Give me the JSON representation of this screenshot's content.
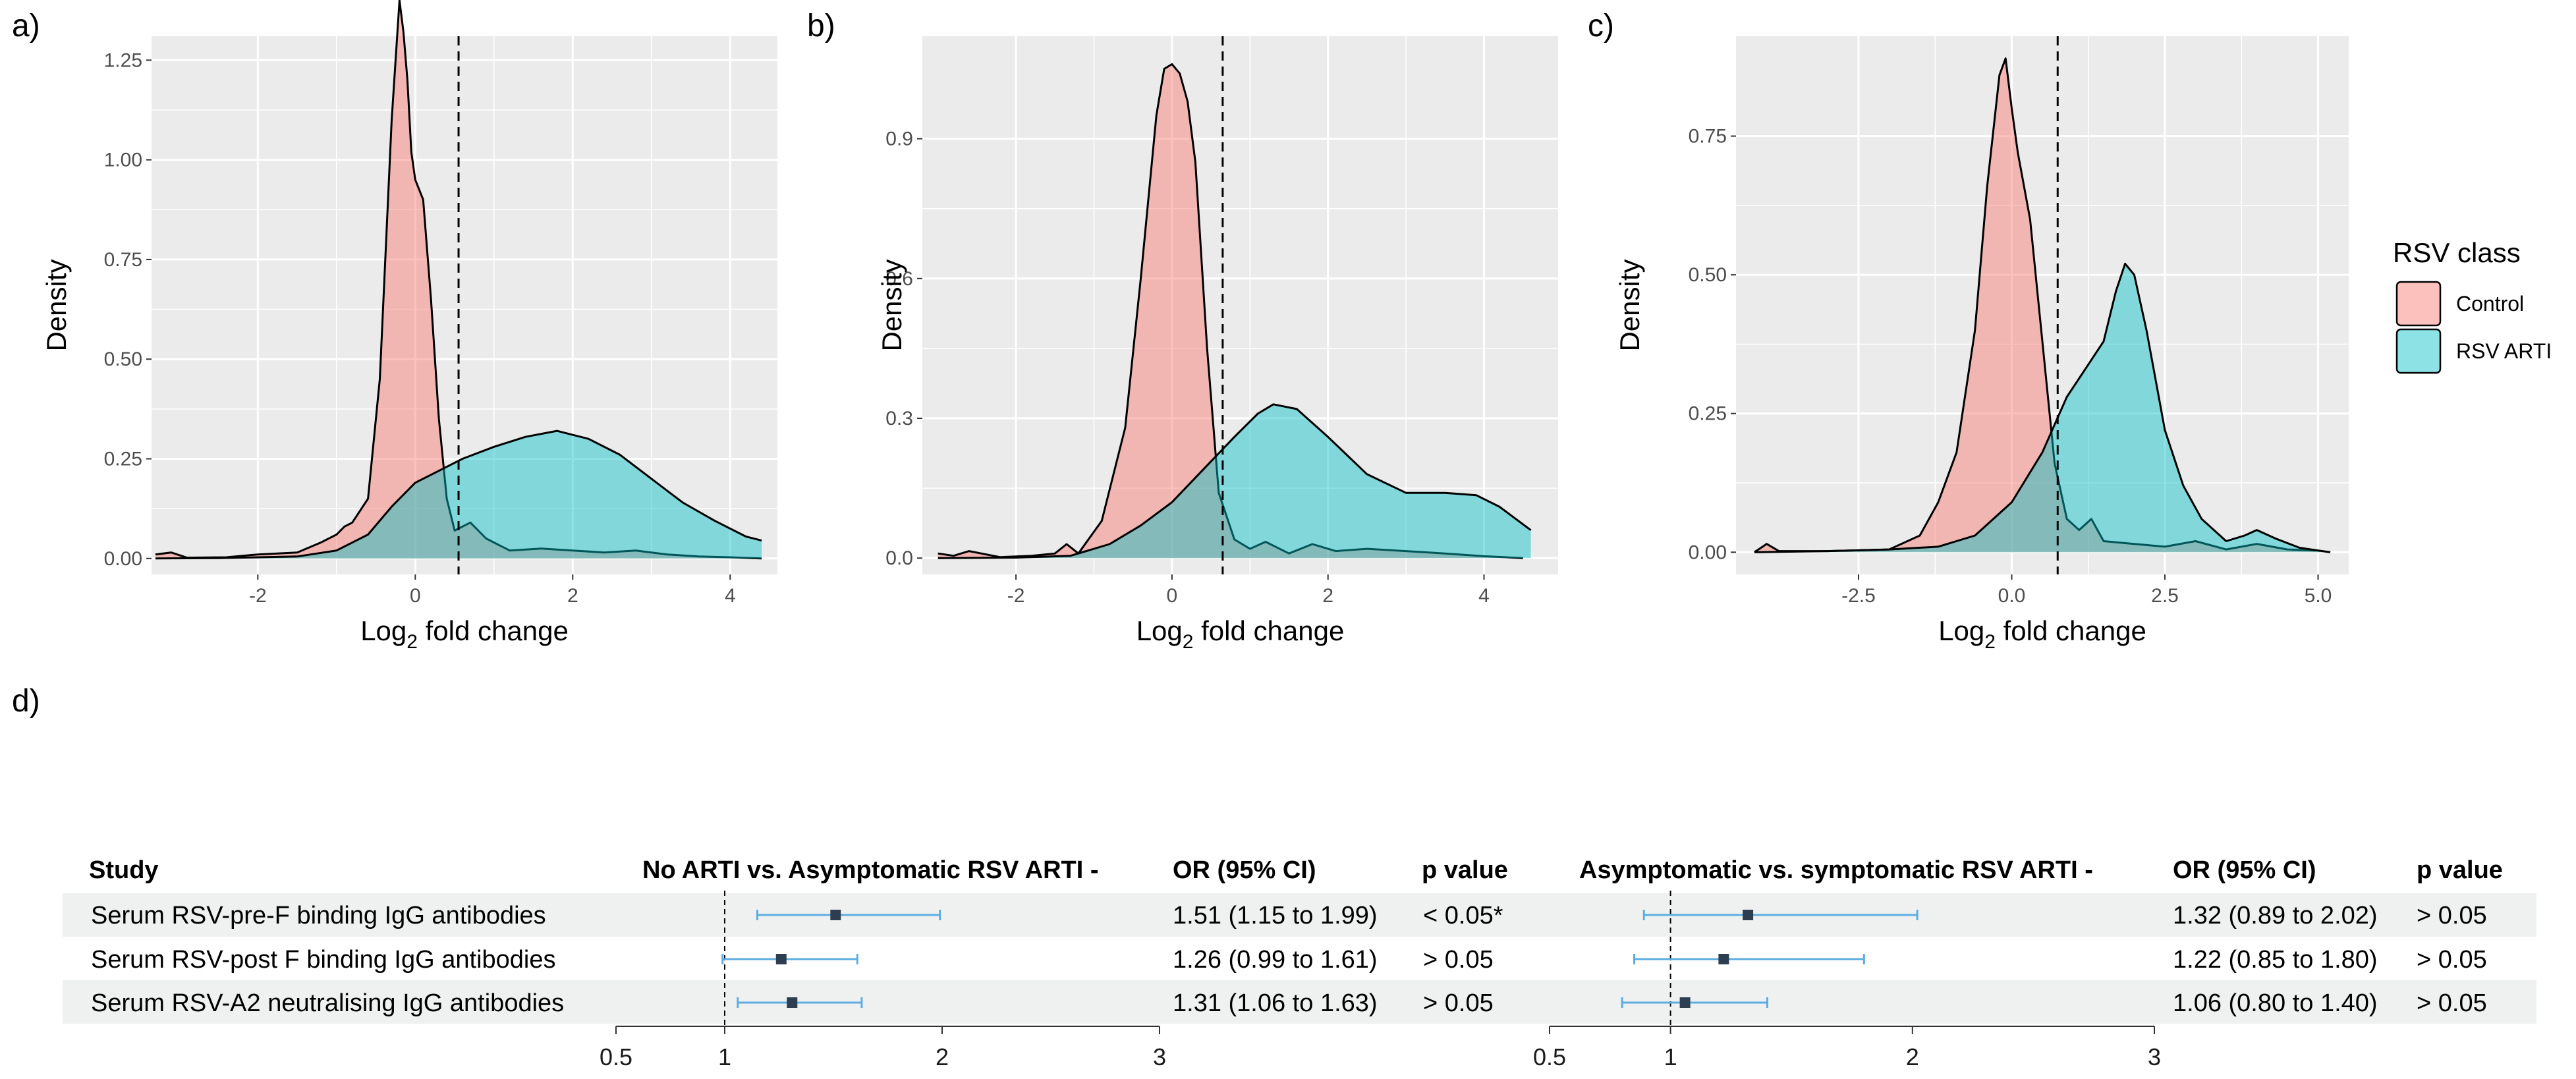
{
  "colors": {
    "control_fill": "#F8766D",
    "rsv_fill": "#00BFC4",
    "panel_bg": "#EBEBEB",
    "grid": "#FFFFFF",
    "forest_ci": "#5DADE2",
    "forest_point": "#2C3E50",
    "row_shade": "#EEF1F0"
  },
  "chart_data": [
    {
      "type": "area",
      "panel_label": "a)",
      "title": "",
      "xlabel_base": "Log",
      "xlabel_sub": "2",
      "xlabel_rest": " fold change",
      "ylabel": "Density",
      "xlim": [
        -3.35,
        4.6
      ],
      "ylim": [
        -0.04,
        1.31
      ],
      "xticks": [
        -2,
        0,
        2,
        4
      ],
      "xtick_labels": [
        "-2",
        "0",
        "2",
        "4"
      ],
      "yticks": [
        0,
        0.25,
        0.5,
        0.75,
        1.0,
        1.25
      ],
      "ytick_labels": [
        "0.00",
        "0.25",
        "0.50",
        "0.75",
        "1.00",
        "1.25"
      ],
      "threshold": 0.55,
      "series": [
        {
          "name": "Control",
          "x": [
            -3.3,
            -3.1,
            -2.9,
            -2.4,
            -2.0,
            -1.5,
            -1.2,
            -1.0,
            -0.9,
            -0.8,
            -0.6,
            -0.45,
            -0.3,
            -0.2,
            -0.15,
            -0.1,
            -0.05,
            0.0,
            0.1,
            0.2,
            0.3,
            0.4,
            0.5,
            0.7,
            0.9,
            1.2,
            1.6,
            2.0,
            2.4,
            2.8,
            3.2,
            3.6,
            4.0,
            4.4
          ],
          "y": [
            0.01,
            0.015,
            0.002,
            0.003,
            0.01,
            0.015,
            0.04,
            0.06,
            0.08,
            0.09,
            0.15,
            0.45,
            1.1,
            1.4,
            1.32,
            1.2,
            1.02,
            0.95,
            0.9,
            0.65,
            0.35,
            0.15,
            0.07,
            0.09,
            0.05,
            0.02,
            0.025,
            0.02,
            0.015,
            0.02,
            0.01,
            0.005,
            0.003,
            0.0
          ]
        },
        {
          "name": "RSV ARTI",
          "x": [
            -3.3,
            -2.5,
            -1.5,
            -1.0,
            -0.6,
            -0.3,
            0.0,
            0.3,
            0.6,
            1.0,
            1.4,
            1.8,
            2.2,
            2.6,
            3.0,
            3.4,
            3.8,
            4.2,
            4.4
          ],
          "y": [
            0.0,
            0.001,
            0.005,
            0.02,
            0.06,
            0.13,
            0.19,
            0.22,
            0.25,
            0.28,
            0.305,
            0.32,
            0.3,
            0.26,
            0.2,
            0.14,
            0.095,
            0.055,
            0.045
          ]
        }
      ]
    },
    {
      "type": "area",
      "panel_label": "b)",
      "title": "",
      "xlabel_base": "Log",
      "xlabel_sub": "2",
      "xlabel_rest": " fold change",
      "ylabel": "Density",
      "xlim": [
        -3.2,
        4.95
      ],
      "ylim": [
        -0.035,
        1.12
      ],
      "xticks": [
        -2,
        0,
        2,
        4
      ],
      "xtick_labels": [
        "-2",
        "0",
        "2",
        "4"
      ],
      "yticks": [
        0,
        0.3,
        0.6,
        0.9
      ],
      "ytick_labels": [
        "0.0",
        "0.3",
        "0.6",
        "0.9"
      ],
      "threshold": 0.65,
      "series": [
        {
          "name": "Control",
          "x": [
            -3.0,
            -2.8,
            -2.6,
            -2.2,
            -1.8,
            -1.5,
            -1.35,
            -1.2,
            -0.9,
            -0.6,
            -0.4,
            -0.2,
            -0.1,
            0.0,
            0.1,
            0.2,
            0.3,
            0.45,
            0.6,
            0.8,
            1.0,
            1.2,
            1.5,
            1.8,
            2.1,
            2.5,
            3.0,
            3.5,
            4.0,
            4.5
          ],
          "y": [
            0.01,
            0.005,
            0.015,
            0.002,
            0.005,
            0.01,
            0.03,
            0.01,
            0.08,
            0.28,
            0.6,
            0.95,
            1.05,
            1.06,
            1.04,
            0.98,
            0.85,
            0.45,
            0.14,
            0.04,
            0.02,
            0.035,
            0.01,
            0.03,
            0.015,
            0.02,
            0.015,
            0.01,
            0.004,
            0.0
          ]
        },
        {
          "name": "RSV ARTI",
          "x": [
            -3.0,
            -2.0,
            -1.3,
            -0.8,
            -0.4,
            0.0,
            0.4,
            0.8,
            1.1,
            1.3,
            1.6,
            2.0,
            2.5,
            3.0,
            3.5,
            3.9,
            4.2,
            4.6
          ],
          "y": [
            0.0,
            0.001,
            0.005,
            0.03,
            0.07,
            0.12,
            0.19,
            0.26,
            0.31,
            0.33,
            0.32,
            0.26,
            0.18,
            0.14,
            0.14,
            0.135,
            0.11,
            0.06
          ]
        }
      ]
    },
    {
      "type": "area",
      "panel_label": "c)",
      "title": "",
      "xlabel_base": "Log",
      "xlabel_sub": "2",
      "xlabel_rest": " fold change",
      "ylabel": "Density",
      "xlim": [
        -4.5,
        5.5
      ],
      "ylim": [
        -0.04,
        0.93
      ],
      "xticks": [
        -2.5,
        0.0,
        2.5,
        5.0
      ],
      "xtick_labels": [
        "-2.5",
        "0.0",
        "2.5",
        "5.0"
      ],
      "yticks": [
        0,
        0.25,
        0.5,
        0.75
      ],
      "ytick_labels": [
        "0.00",
        "0.25",
        "0.50",
        "0.75"
      ],
      "threshold": 0.75,
      "series": [
        {
          "name": "Control",
          "x": [
            -4.2,
            -4.0,
            -3.8,
            -3.0,
            -2.0,
            -1.5,
            -1.2,
            -0.9,
            -0.6,
            -0.4,
            -0.2,
            -0.1,
            0.0,
            0.1,
            0.3,
            0.5,
            0.7,
            0.9,
            1.1,
            1.3,
            1.5,
            2.0,
            2.5,
            3.0,
            3.5,
            4.0,
            4.5,
            5.0,
            5.2
          ],
          "y": [
            0.0,
            0.015,
            0.002,
            0.002,
            0.005,
            0.03,
            0.09,
            0.18,
            0.4,
            0.66,
            0.86,
            0.89,
            0.8,
            0.72,
            0.6,
            0.38,
            0.16,
            0.06,
            0.04,
            0.06,
            0.02,
            0.015,
            0.01,
            0.02,
            0.005,
            0.015,
            0.005,
            0.003,
            0.0
          ]
        },
        {
          "name": "RSV ARTI",
          "x": [
            -4.2,
            -3.0,
            -2.0,
            -1.2,
            -0.6,
            0.0,
            0.5,
            0.9,
            1.2,
            1.5,
            1.7,
            1.85,
            2.0,
            2.2,
            2.5,
            2.8,
            3.1,
            3.5,
            3.8,
            4.0,
            4.3,
            4.7,
            5.2
          ],
          "y": [
            0.0,
            0.002,
            0.005,
            0.01,
            0.03,
            0.09,
            0.18,
            0.28,
            0.33,
            0.38,
            0.47,
            0.52,
            0.5,
            0.4,
            0.22,
            0.12,
            0.06,
            0.02,
            0.03,
            0.04,
            0.025,
            0.008,
            0.0
          ]
        }
      ]
    },
    {
      "type": "forest",
      "panel_label": "d)",
      "row_header": "Study",
      "rows": [
        "Serum RSV-pre-F binding IgG antibodies",
        "Serum RSV-post F binding IgG antibodies",
        "Serum RSV-A2 neutralising IgG antibodies"
      ],
      "comparisons": [
        {
          "title": "No ARTI vs. Asymptomatic RSV ARTI -",
          "or_header": "OR (95% CI)",
          "p_header": "p value",
          "xlim": [
            0.5,
            3.0
          ],
          "ref": 1,
          "xticks": [
            0.5,
            1,
            2,
            3
          ],
          "xtick_labels": [
            "0.5",
            "1",
            "2",
            "3"
          ],
          "estimates": [
            1.51,
            1.26,
            1.31
          ],
          "lower": [
            1.15,
            0.99,
            1.06
          ],
          "upper": [
            1.99,
            1.61,
            1.63
          ],
          "or_text": [
            "1.51 (1.15 to 1.99)",
            "1.26 (0.99 to 1.61)",
            "1.31 (1.06 to 1.63)"
          ],
          "p_text": [
            "< 0.05*",
            "> 0.05",
            "> 0.05"
          ]
        },
        {
          "title": "Asymptomatic vs. symptomatic RSV ARTI  -",
          "or_header": "OR (95% CI)",
          "p_header": "p value",
          "xlim": [
            0.5,
            3.0
          ],
          "ref": 1,
          "xticks": [
            0.5,
            1,
            2,
            3
          ],
          "xtick_labels": [
            "0.5",
            "1",
            "2",
            "3"
          ],
          "estimates": [
            1.32,
            1.22,
            1.06
          ],
          "lower": [
            0.89,
            0.85,
            0.8
          ],
          "upper": [
            2.02,
            1.8,
            1.4
          ],
          "or_text": [
            "1.32 (0.89 to 2.02)",
            "1.22 (0.85 to 1.80)",
            "1.06 (0.80 to 1.40)"
          ],
          "p_text": [
            "> 0.05",
            "> 0.05",
            "> 0.05"
          ]
        }
      ]
    }
  ],
  "legend": {
    "title": "RSV class",
    "items": [
      "Control",
      "RSV ARTI"
    ]
  }
}
